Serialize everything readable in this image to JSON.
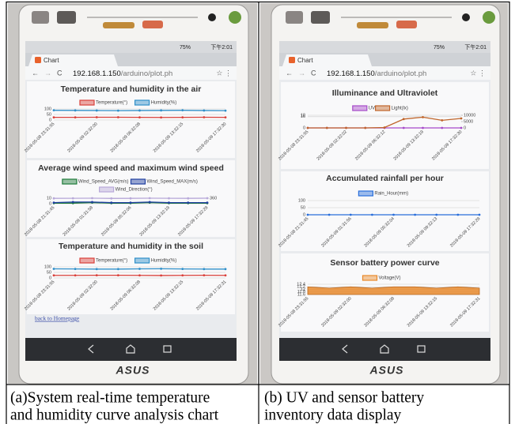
{
  "panels": [
    {
      "status": {
        "battery": "75%",
        "time": "下午2:01"
      },
      "tab": "Chart",
      "url_host": "192.168.1.150",
      "url_path": "/arduino/plot.ph",
      "charts": [
        {
          "type": "line",
          "title": "Temperature and humidity in the air",
          "categories": [
            "2018-05-08 23:31:55",
            null,
            "2018-05-09 02:32:00",
            null,
            "2018-05-09 06:32:08",
            null,
            "2018-05-09 13:32:15",
            null,
            "2018-05-09 17:32:30"
          ],
          "series": [
            {
              "name": "Temperature(°)",
              "color": "#d9403a",
              "values": [
                24,
                24,
                25,
                25,
                24,
                23,
                24,
                25,
                24
              ]
            },
            {
              "name": "Humidity(%)",
              "color": "#2f8fc9",
              "values": [
                88,
                87,
                86,
                85,
                86,
                87,
                88,
                86,
                85
              ]
            }
          ],
          "ylim": [
            0,
            100
          ],
          "yticks": [
            0,
            50,
            100
          ]
        },
        {
          "type": "line",
          "title": "Average wind speed and maximum wind speed",
          "categories": [
            "2018-05-08 21:31:45",
            null,
            "2018-05-09 01:31:58",
            null,
            "2018-05-09 05:32:06",
            null,
            "2018-05-09 13:32:19",
            null,
            "2018-05-09 17:32:29"
          ],
          "series": [
            {
              "name": "Wind_Speed_AVG(m/s)",
              "color": "#1e7b3a",
              "values": [
                1,
                1,
                2,
                1,
                1,
                2,
                1,
                1,
                1
              ]
            },
            {
              "name": "Wind_Speed_MAX(m/s)",
              "color": "#1f3fa0",
              "values": [
                2,
                3,
                3,
                2,
                2,
                3,
                2,
                2,
                2
              ]
            },
            {
              "name": "Wind_Direction(°)",
              "color": "#b8a9d9",
              "axis": "y2",
              "values": [
                350,
                355,
                360,
                345,
                350,
                360,
                355,
                350,
                360
              ]
            }
          ],
          "ylim": [
            0,
            10
          ],
          "yticks": [
            0,
            10
          ],
          "y2lim": [
            0,
            360
          ],
          "y2ticks": [
            360
          ]
        },
        {
          "type": "line",
          "title": "Temperature and humidity in the soil",
          "categories": [
            "2018-05-08 23:31:55",
            null,
            "2018-05-09 02:32:00",
            null,
            "2018-05-09 06:32:08",
            null,
            "2018-05-09 13:32:15",
            null,
            "2018-05-09 17:32:31"
          ],
          "series": [
            {
              "name": "Temperature(°)",
              "color": "#d9403a",
              "values": [
                23,
                23,
                24,
                24,
                23,
                22,
                23,
                24,
                23
              ]
            },
            {
              "name": "Humidity(%)",
              "color": "#2f8fc9",
              "values": [
                82,
                81,
                80,
                80,
                82,
                83,
                81,
                80,
                80
              ]
            }
          ],
          "ylim": [
            0,
            100
          ],
          "yticks": [
            0,
            50,
            100
          ]
        }
      ],
      "link": "back to Homepage",
      "brand": "ASUS",
      "caption": [
        "(a)System real-time temperature",
        "and humidity curve analysis chart"
      ]
    },
    {
      "status": {
        "battery": "75%",
        "time": "下午2:01"
      },
      "tab": "Chart",
      "url_host": "192.168.1.150",
      "url_path": "/arduino/plot.ph",
      "charts": [
        {
          "type": "line",
          "title": "Illuminance and Ultraviolet",
          "categories": [
            "2018-05-08 23:31:55",
            null,
            "2018-05-09 02:32:02",
            null,
            "2018-05-09 06:32:12",
            null,
            "2018-05-09 13:32:19",
            null,
            "2018-05-09 17:32:30"
          ],
          "series": [
            {
              "name": "UV",
              "color": "#a64ac9",
              "values": [
                0,
                0,
                0,
                0,
                0,
                0,
                0,
                0,
                0
              ]
            },
            {
              "name": "Light(lx)",
              "color": "#c0652b",
              "axis": "y2",
              "values": [
                0,
                0,
                0,
                0,
                300,
                7000,
                8500,
                6000,
                7500
              ]
            }
          ],
          "ylim": [
            0,
            18
          ],
          "yticks": [
            0,
            16,
            18
          ],
          "y2lim": [
            0,
            10000
          ],
          "y2ticks": [
            0,
            5000,
            10000
          ]
        },
        {
          "type": "line",
          "title": "Accumulated rainfall per hour",
          "categories": [
            "2018-05-08 21:31:45",
            null,
            "2018-05-09 01:31:56",
            null,
            "2018-05-09 05:32:04",
            null,
            "2018-05-09 09:32:13",
            null,
            "2018-05-09 17:32:29"
          ],
          "series": [
            {
              "name": "Rain_Hour(mm)",
              "color": "#2a6fdb",
              "values": [
                0,
                0,
                0,
                0,
                0,
                0,
                0,
                0,
                0
              ]
            }
          ],
          "ylim": [
            0,
            100
          ],
          "yticks": [
            0,
            50,
            100
          ]
        },
        {
          "type": "area",
          "title": "Sensor battery power curve",
          "categories": [
            "2018-05-08 23:31:55",
            null,
            "2018-05-09 02:32:00",
            null,
            "2018-05-09 06:32:08",
            null,
            "2018-05-09 13:32:15",
            null,
            "2018-05-09 17:32:31"
          ],
          "series": [
            {
              "name": "Voltage(V)",
              "color": "#e8892b",
              "values": [
                12.2,
                12.1,
                12.2,
                12.1,
                12.2,
                12.2,
                12.1,
                12.2,
                12.1
              ]
            }
          ],
          "ylim": [
            11.6,
            12.4
          ],
          "yticks": [
            11.6,
            11.8,
            12,
            12.2,
            12.4
          ]
        }
      ],
      "brand": "ASUS",
      "caption": [
        "(b) UV and sensor battery",
        "inventory data display"
      ]
    }
  ]
}
